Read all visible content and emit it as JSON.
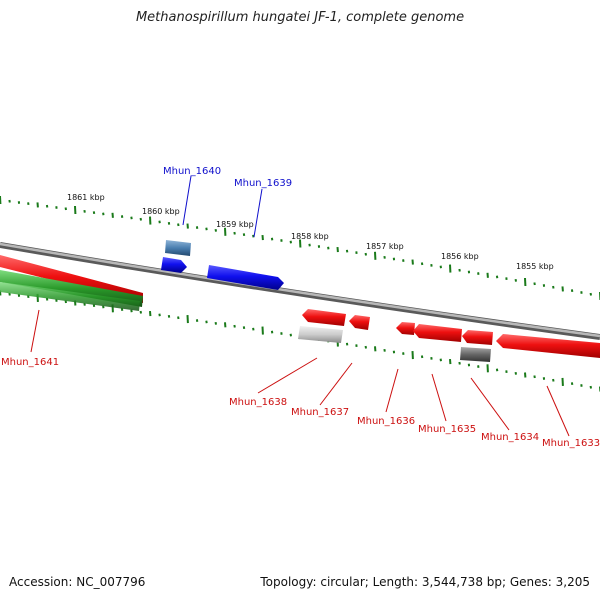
{
  "title": "Methanospirillum hungatei JF-1, complete genome",
  "footer": {
    "accession": "Accession: NC_007796",
    "summary": "Topology: circular; Length: 3,544,738 bp; Genes: 3,205"
  },
  "scale_labels": [
    "1861 kbp",
    "1860 kbp",
    "1859 kbp",
    "1858 kbp",
    "1857 kbp",
    "1856 kbp",
    "1855 kbp"
  ],
  "genes": [
    {
      "id": "Mhun_1640",
      "color": "#1010cc"
    },
    {
      "id": "Mhun_1639",
      "color": "#1010cc"
    },
    {
      "id": "Mhun_1641",
      "color": "#cc1010"
    },
    {
      "id": "Mhun_1638",
      "color": "#cc1010"
    },
    {
      "id": "Mhun_1637",
      "color": "#cc1010"
    },
    {
      "id": "Mhun_1636",
      "color": "#cc1010"
    },
    {
      "id": "Mhun_1635",
      "color": "#cc1010"
    },
    {
      "id": "Mhun_1634",
      "color": "#cc1010"
    },
    {
      "id": "Mhun_1633",
      "color": "#cc1010"
    }
  ],
  "colors": {
    "forward_cds": "#1010ee",
    "reverse_cds": "#ee1010",
    "rna": "#2a9a2a",
    "pseudo": "#777777",
    "tick": "#1a7a1a",
    "backbone": "#888888"
  }
}
